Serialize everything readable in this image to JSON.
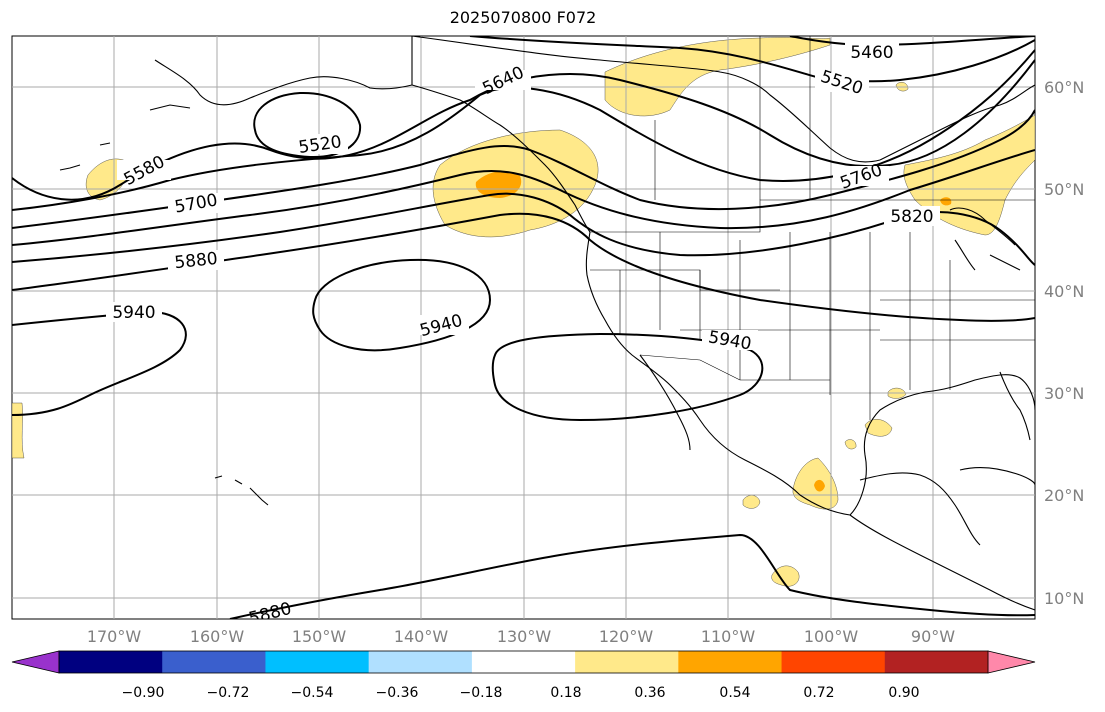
{
  "title": "2025070800 F072",
  "map": {
    "longitude_labels": [
      "170°W",
      "160°W",
      "150°W",
      "140°W",
      "130°W",
      "120°W",
      "110°W",
      "100°W",
      "90°W"
    ],
    "latitude_labels": [
      "60°N",
      "50°N",
      "40°N",
      "30°N",
      "20°N",
      "10°N"
    ],
    "contour_labels": [
      "5460",
      "5520",
      "5640",
      "5520",
      "5580",
      "5700",
      "5760",
      "5820",
      "5880",
      "5940",
      "5940",
      "5940",
      "5880"
    ],
    "shading_colors": {
      "light": "#ffe98a",
      "medium": "#ffa500"
    }
  },
  "colorbar": {
    "tick_labels": [
      "−0.90",
      "−0.72",
      "−0.54",
      "−0.36",
      "−0.18",
      "0.18",
      "0.36",
      "0.54",
      "0.72",
      "0.90"
    ],
    "colors": [
      "#9932cc",
      "#000080",
      "#3a5fcd",
      "#00bfff",
      "#b0e0ff",
      "#ffffff",
      "#ffe98a",
      "#ffa500",
      "#ff4500",
      "#b22222",
      "#ff88aa"
    ]
  }
}
